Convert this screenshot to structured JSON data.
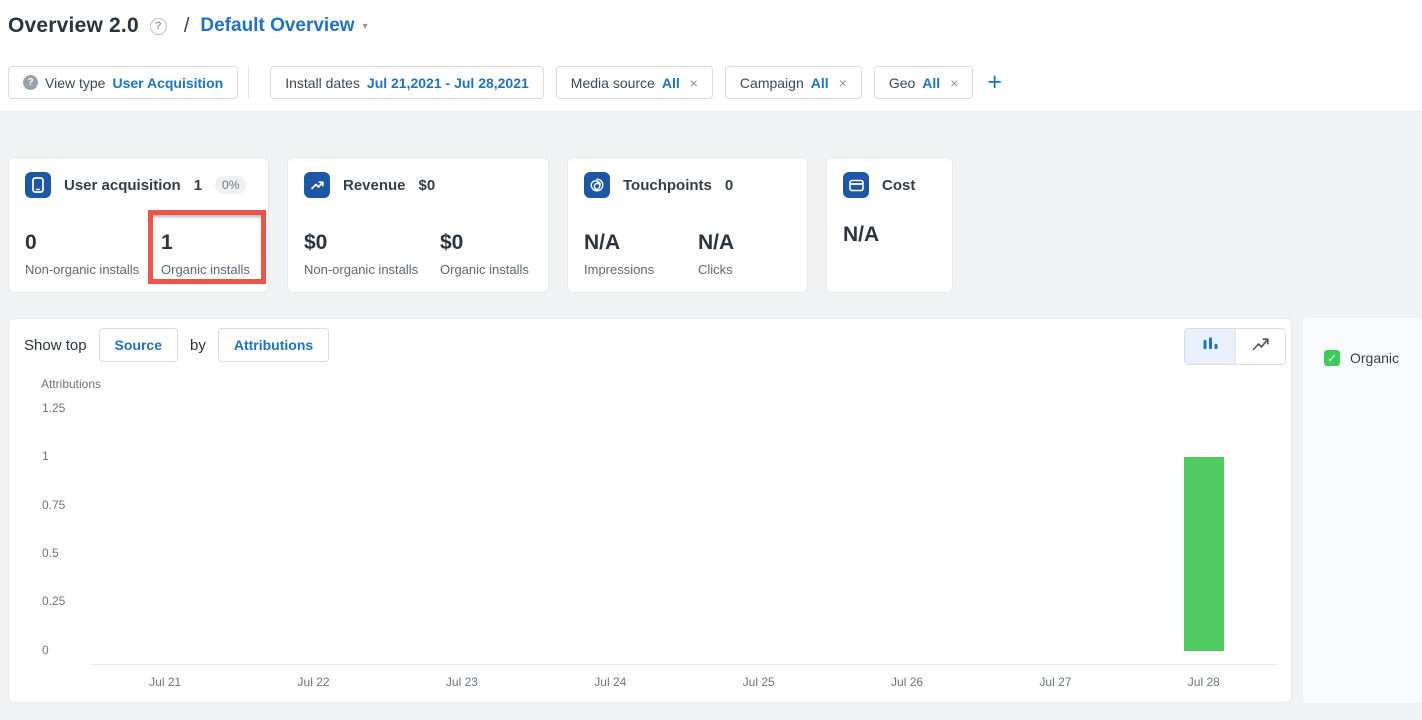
{
  "icons": {
    "help_glyph": "?",
    "caret_glyph": "▾",
    "close_glyph": "×",
    "plus_glyph": "+",
    "check_glyph": "✓"
  },
  "header": {
    "title": "Overview 2.0",
    "separator": "/",
    "view_name": "Default Overview"
  },
  "filters": {
    "view_type_label": "View type",
    "view_type_value": "User Acquisition",
    "install_dates_label": "Install dates",
    "install_dates_value": "Jul 21,2021 - Jul 28,2021",
    "chips": [
      {
        "label": "Media source",
        "value": "All"
      },
      {
        "label": "Campaign",
        "value": "All"
      },
      {
        "label": "Geo",
        "value": "All"
      }
    ]
  },
  "cards": [
    {
      "title": "User acquisition",
      "header_value": "1",
      "badge": "0%",
      "metrics": [
        {
          "value": "0",
          "label": "Non-organic installs"
        },
        {
          "value": "1",
          "label": "Organic installs"
        }
      ]
    },
    {
      "title": "Revenue",
      "header_value": "$0",
      "metrics": [
        {
          "value": "$0",
          "label": "Non-organic installs"
        },
        {
          "value": "$0",
          "label": "Organic installs"
        }
      ]
    },
    {
      "title": "Touchpoints",
      "header_value": "0",
      "metrics": [
        {
          "value": "N/A",
          "label": "Impressions"
        },
        {
          "value": "N/A",
          "label": "Clicks"
        }
      ]
    },
    {
      "title": "Cost",
      "metrics": [
        {
          "value": "N/A",
          "label": ""
        }
      ]
    }
  ],
  "chart_panel": {
    "show_top_label": "Show top",
    "source_button": "Source",
    "by_label": "by",
    "attributions_button": "Attributions"
  },
  "chart_data": {
    "type": "bar",
    "title": "",
    "ylabel": "Attributions",
    "xlabel": "",
    "categories": [
      "Jul 21",
      "Jul 22",
      "Jul 23",
      "Jul 24",
      "Jul 25",
      "Jul 26",
      "Jul 27",
      "Jul 28"
    ],
    "series": [
      {
        "name": "Organic",
        "color": "#4fcb62",
        "values": [
          0,
          0,
          0,
          0,
          0,
          0,
          0,
          1
        ]
      }
    ],
    "yticks": [
      0,
      0.25,
      0.5,
      0.75,
      1,
      1.25
    ],
    "ylim": [
      0,
      1.25
    ],
    "grid": false,
    "legend_position": "right"
  },
  "colors": {
    "accent_blue": "#2173c2",
    "icon_blue": "#1d57a5",
    "bar_green": "#4fcb62",
    "check_green": "#3fc95d",
    "annotation_red": "#ec564a",
    "page_background": "#f1f2f4"
  }
}
